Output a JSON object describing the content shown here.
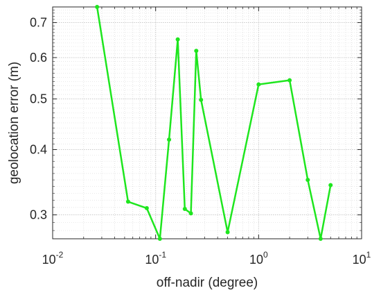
{
  "chart_data": {
    "type": "line",
    "title": "",
    "xlabel": "off-nadir (degree)",
    "ylabel": "geolocation error (m)",
    "x_scale": "log",
    "y_scale": "log",
    "xlim": [
      0.01,
      10
    ],
    "ylim": [
      0.27,
      0.75
    ],
    "grid": true,
    "grid_minor": true,
    "x_ticks": [
      {
        "value": 0.01,
        "base": "10",
        "exp": "-2"
      },
      {
        "value": 0.1,
        "base": "10",
        "exp": "-1"
      },
      {
        "value": 1,
        "base": "10",
        "exp": "0"
      },
      {
        "value": 10,
        "base": "10",
        "exp": "1"
      }
    ],
    "y_ticks": [
      {
        "value": 0.3,
        "label": "0.3"
      },
      {
        "value": 0.4,
        "label": "0.4"
      },
      {
        "value": 0.5,
        "label": "0.5"
      },
      {
        "value": 0.6,
        "label": "0.6"
      },
      {
        "value": 0.7,
        "label": "0.7"
      }
    ],
    "series": [
      {
        "color": "#1ee61e",
        "x": [
          0.027,
          0.054,
          0.082,
          0.11,
          0.135,
          0.164,
          0.192,
          0.22,
          0.248,
          0.276,
          0.5,
          1.0,
          2.0,
          3.0,
          4.0,
          5.0
        ],
        "y": [
          0.75,
          0.318,
          0.309,
          0.27,
          0.418,
          0.65,
          0.308,
          0.302,
          0.618,
          0.498,
          0.278,
          0.533,
          0.543,
          0.35,
          0.27,
          0.342
        ]
      }
    ]
  }
}
